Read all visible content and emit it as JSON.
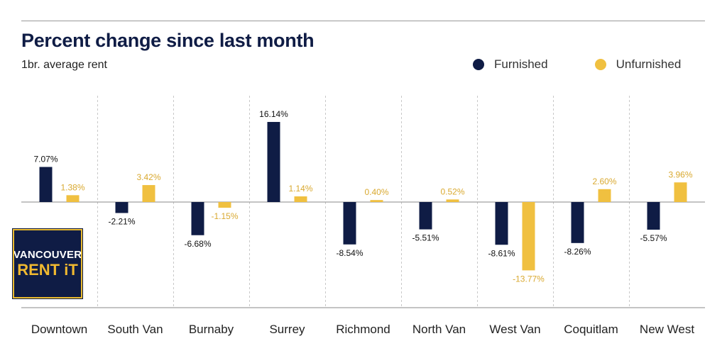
{
  "chart_data": {
    "type": "bar",
    "title": "Percent change since last month",
    "subtitle": "1br. average rent",
    "categories": [
      "Downtown",
      "South Van",
      "Burnaby",
      "Surrey",
      "Richmond",
      "North Van",
      "West Van",
      "Coquitlam",
      "New West"
    ],
    "series": [
      {
        "name": "Furnished",
        "color": "#0f1c45",
        "values": [
          7.07,
          -2.21,
          -6.68,
          16.14,
          -8.54,
          -5.51,
          -8.61,
          -8.26,
          -5.57
        ],
        "labels": [
          "7.07%",
          "-2.21%",
          "-6.68%",
          "16.14%",
          "-8.54%",
          "-5.51%",
          "-8.61%",
          "-8.26%",
          "-5.57%"
        ]
      },
      {
        "name": "Unfurnished",
        "color": "#f0c040",
        "values": [
          1.38,
          3.42,
          -1.15,
          1.14,
          0.4,
          0.52,
          -13.77,
          2.6,
          3.96
        ],
        "labels": [
          "1.38%",
          "3.42%",
          "-1.15%",
          "1.14%",
          "0.40%",
          "0.52%",
          "-13.77%",
          "2.60%",
          "3.96%"
        ]
      }
    ],
    "ylim": [
      -21,
      21
    ],
    "grid": "vertical dashed separators",
    "legend": "top-right"
  },
  "logo": {
    "line1": "VANCOUVER",
    "line2": "RENT iT"
  },
  "colors": {
    "navy": "#0f1c45",
    "yellow": "#f0c040",
    "yellow_label": "#d9a930"
  }
}
